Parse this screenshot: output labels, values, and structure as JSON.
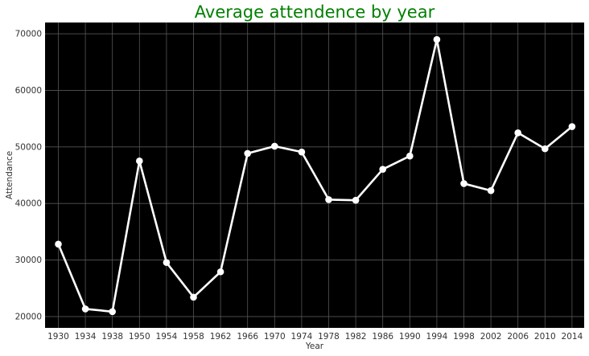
{
  "chart_data": {
    "type": "line",
    "title": "Average attendence by year",
    "xlabel": "Year",
    "ylabel": "Attendance",
    "categories": [
      "1930",
      "1934",
      "1938",
      "1950",
      "1954",
      "1958",
      "1962",
      "1966",
      "1970",
      "1974",
      "1978",
      "1982",
      "1986",
      "1990",
      "1994",
      "1998",
      "2002",
      "2006",
      "2010",
      "2014"
    ],
    "series": [
      {
        "values": [
          32808,
          21353,
          20872,
          47511,
          29562,
          23423,
          27912,
          48848,
          50124,
          49099,
          40679,
          40572,
          46039,
          48389,
          68991,
          43517,
          42269,
          52491,
          49670,
          53592
        ]
      }
    ],
    "yticks": [
      20000,
      30000,
      40000,
      50000,
      60000,
      70000
    ],
    "ylim": [
      18000,
      72000
    ],
    "grid": true,
    "legend": "none",
    "colors": {
      "background": "#000000",
      "line": "#ffffff",
      "marker": "#ffffff",
      "grid": "#555555",
      "title": "#008000",
      "text": "#333333"
    }
  }
}
